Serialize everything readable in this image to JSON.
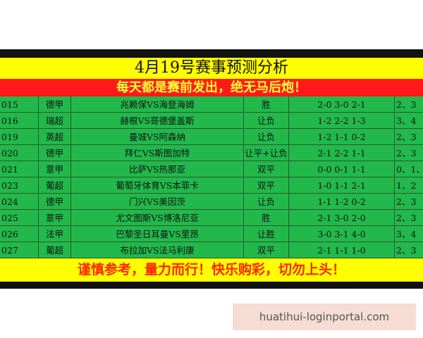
{
  "header": {
    "title": "4月19号赛事预测分析",
    "slogan": "每天都是赛前发出，绝无马后炮！"
  },
  "table": {
    "rows": [
      [
        "015",
        "德甲",
        "兆赖保VS海登海姆",
        "胜",
        "2-0  3-0  2-1",
        "2、3"
      ],
      [
        "016",
        "瑞超",
        "赫根VS哥德堡盖斯",
        "让负",
        "1-2  2-2  1-3",
        "3、4"
      ],
      [
        "019",
        "英超",
        "曼城VS阿森纳",
        "让负",
        "1-2  1-1  0-2",
        "2、3"
      ],
      [
        "020",
        "德甲",
        "拜仁VS斯图加特",
        "让平+让负",
        "2-1  2-2  1-1",
        "2、3"
      ],
      [
        "021",
        "意甲",
        "比萨VS热那亚",
        "双平",
        "0-0  0-1  1-1",
        "0、1、"
      ],
      [
        "023",
        "葡超",
        "葡萄牙体育VS本菲卡",
        "双平",
        "1-0  1-1  2-1",
        "1、2"
      ],
      [
        "024",
        "德甲",
        "门兴VS美因茨",
        "让负",
        "1-1  1-2  0-2",
        "2、3"
      ],
      [
        "025",
        "意甲",
        "尤文图斯VS博洛尼亚",
        "胜",
        "2-1  3-0  2-0",
        "2、3"
      ],
      [
        "026",
        "法甲",
        "巴黎圣日耳曼VS里昂",
        "让胜",
        "3-0  3-1  4-0",
        "3、4"
      ],
      [
        "027",
        "葡超",
        "布拉加VS法马利康",
        "双平",
        "2-1  1-1  1-0",
        "2、3"
      ]
    ]
  },
  "footer": {
    "text": "谨慎参考，量力而行！快乐购彩，切勿上头！"
  },
  "watermark": "huatihui-loginportal.com"
}
